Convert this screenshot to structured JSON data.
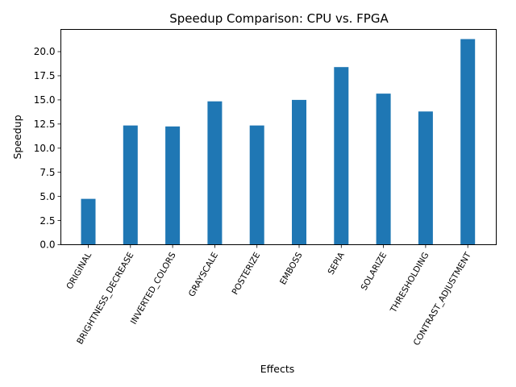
{
  "chart_data": {
    "type": "bar",
    "title": "Speedup Comparison: CPU vs. FPGA",
    "xlabel": "Effects",
    "ylabel": "Speedup",
    "categories": [
      "ORIGINAL",
      "BRIGHTNESS_DECREASE",
      "INVERTED_COLORS",
      "GRAYSCALE",
      "POSTERIZE",
      "EMBOSS",
      "SEPIA",
      "SOLARIZE",
      "THRESHOLDING",
      "CONTRAST_ADJUSTMENT"
    ],
    "values": [
      4.75,
      12.35,
      12.25,
      14.85,
      12.35,
      15.0,
      18.4,
      15.65,
      13.8,
      21.3
    ],
    "yticks": [
      "0.0",
      "2.5",
      "5.0",
      "7.5",
      "10.0",
      "12.5",
      "15.0",
      "17.5",
      "20.0"
    ],
    "ylim": [
      0,
      22.3
    ],
    "bar_color": "#1f77b4",
    "grid": false,
    "legend": "none"
  }
}
